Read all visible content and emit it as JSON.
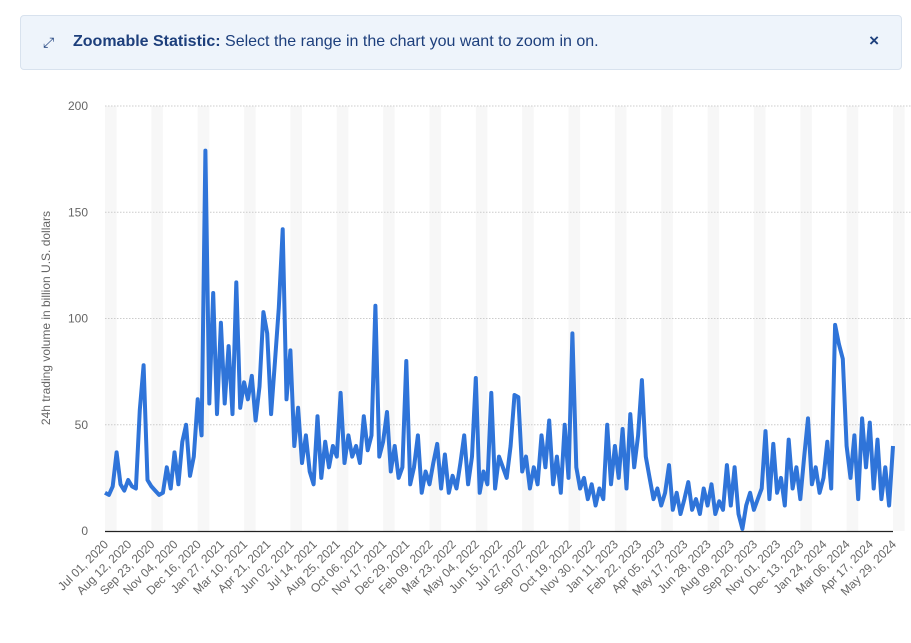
{
  "banner": {
    "icon": "expand-arrows-icon",
    "title": "Zoomable Statistic:",
    "message": "Select the range in the chart you want to zoom in on.",
    "close_icon": "close-icon",
    "close_label": "×"
  },
  "chart_data": {
    "type": "line",
    "title": "",
    "xlabel": "",
    "ylabel": "24h trading volume in billion U.S. dollars",
    "ylim": [
      0,
      200
    ],
    "yticks": [
      "0",
      "50",
      "100",
      "150",
      "200"
    ],
    "xlim": [
      "Jul 01, 2020",
      "May 29, 2024"
    ],
    "xticks": [
      "Jul 01, 2020",
      "Aug 12, 2020",
      "Sep 23, 2020",
      "Nov 04, 2020",
      "Dec 16, 2020",
      "Jan 27, 2021",
      "Mar 10, 2021",
      "Apr 21, 2021",
      "Jun 02, 2021",
      "Jul 14, 2021",
      "Aug 25, 2021",
      "Oct 06, 2021",
      "Nov 17, 2021",
      "Dec 29, 2021",
      "Feb 09, 2022",
      "Mar 23, 2022",
      "May 04, 2022",
      "Jun 15, 2022",
      "Jul 27, 2022",
      "Sep 07, 2022",
      "Oct 19, 2022",
      "Nov 30, 2022",
      "Jan 11, 2023",
      "Feb 22, 2023",
      "Apr 05, 2023",
      "May 17, 2023",
      "Jun 28, 2023",
      "Aug 09, 2023",
      "Sep 20, 2023",
      "Nov 01, 2023",
      "Dec 13, 2023",
      "Jan 24, 2024",
      "Mar 06, 2024",
      "Apr 17, 2024",
      "May 29, 2024"
    ],
    "grid": true,
    "legend": "none",
    "line_color": "#2f74d9",
    "values": [
      18,
      17,
      21,
      37,
      22,
      19,
      24,
      21,
      20,
      57,
      78,
      24,
      21,
      19,
      17,
      18,
      30,
      20,
      37,
      22,
      42,
      50,
      26,
      35,
      62,
      45,
      179,
      60,
      112,
      55,
      98,
      60,
      87,
      55,
      117,
      58,
      70,
      62,
      73,
      52,
      68,
      103,
      93,
      55,
      80,
      105,
      142,
      62,
      85,
      40,
      58,
      32,
      45,
      28,
      22,
      54,
      25,
      42,
      30,
      40,
      35,
      65,
      32,
      45,
      35,
      40,
      32,
      54,
      38,
      45,
      106,
      35,
      42,
      56,
      28,
      40,
      25,
      30,
      80,
      22,
      30,
      45,
      18,
      28,
      22,
      32,
      41,
      20,
      36,
      18,
      26,
      20,
      32,
      45,
      22,
      35,
      72,
      18,
      28,
      22,
      65,
      20,
      35,
      30,
      25,
      40,
      64,
      63,
      28,
      35,
      20,
      30,
      22,
      45,
      30,
      52,
      22,
      35,
      18,
      50,
      25,
      93,
      30,
      20,
      25,
      15,
      22,
      12,
      20,
      15,
      50,
      22,
      40,
      25,
      48,
      20,
      55,
      30,
      45,
      71,
      35,
      25,
      15,
      20,
      12,
      18,
      31,
      10,
      18,
      8,
      15,
      23,
      10,
      15,
      8,
      20,
      12,
      22,
      8,
      14,
      10,
      31,
      12,
      30,
      8,
      1,
      12,
      18,
      10,
      15,
      20,
      47,
      15,
      41,
      18,
      25,
      12,
      43,
      20,
      30,
      15,
      35,
      53,
      22,
      30,
      18,
      25,
      42,
      20,
      97,
      88,
      81,
      40,
      25,
      45,
      15,
      53,
      30,
      51,
      20,
      43,
      15,
      30,
      12,
      40
    ]
  }
}
